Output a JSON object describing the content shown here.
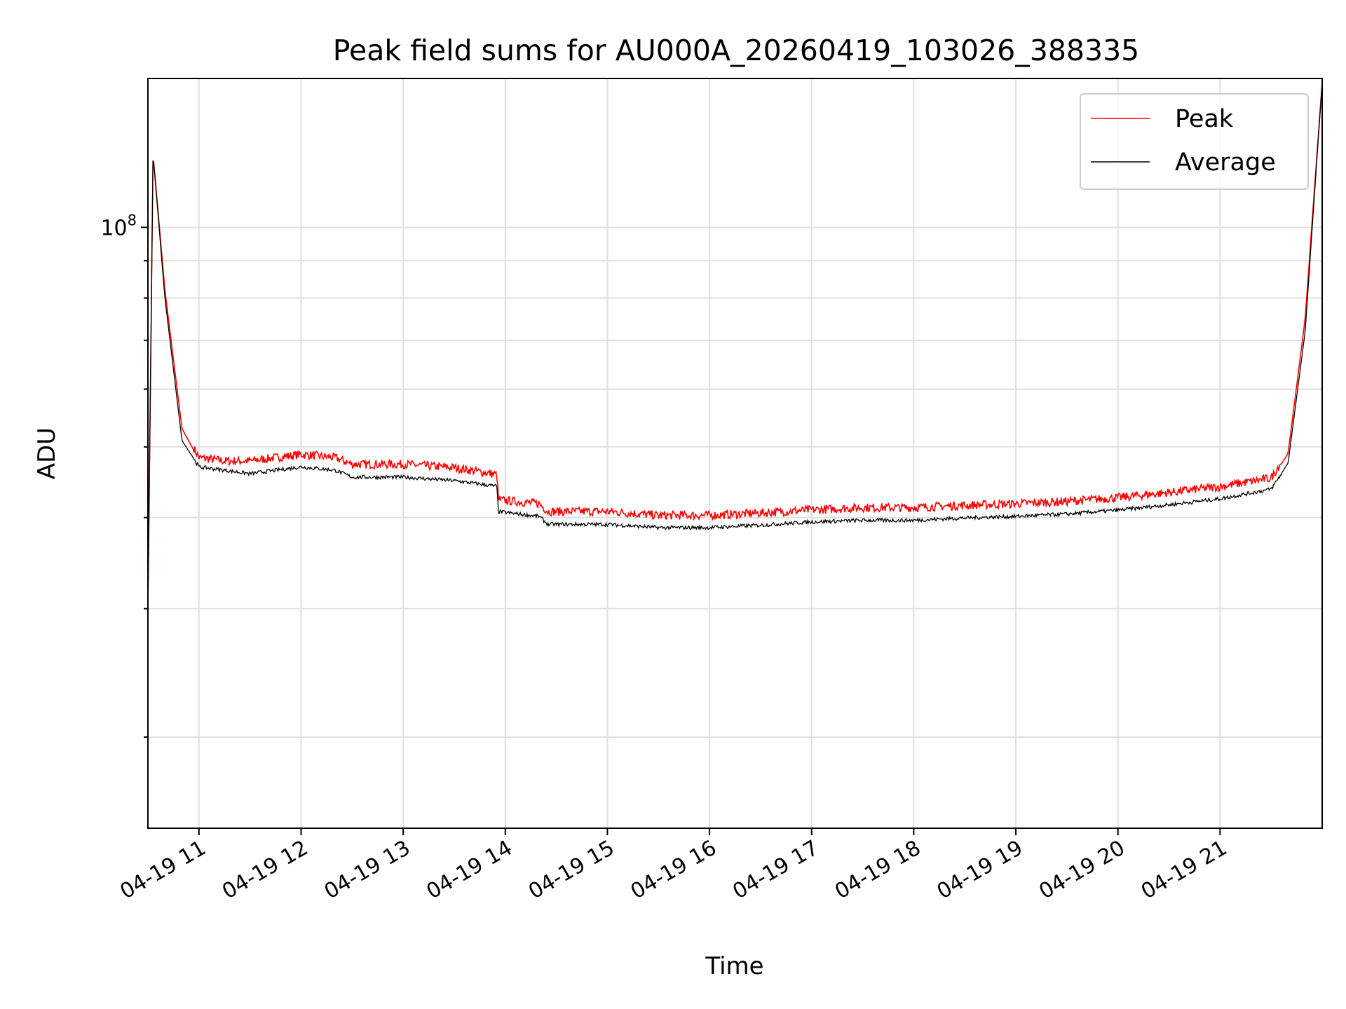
{
  "chart_data": {
    "type": "line",
    "title": "Peak field sums for AU000A_20260419_103026_388335",
    "xlabel": "Time",
    "ylabel": "ADU",
    "y_scale": "log",
    "ylim": [
      15000000,
      160000000
    ],
    "xlim": [
      "04-19 10:30",
      "04-19 22:00"
    ],
    "grid": true,
    "legend_position": "top-right",
    "x_ticks": [
      "04-19 11",
      "04-19 12",
      "04-19 13",
      "04-19 14",
      "04-19 15",
      "04-19 16",
      "04-19 17",
      "04-19 18",
      "04-19 19",
      "04-19 20",
      "04-19 21"
    ],
    "y_tick_label": {
      "base": "10",
      "exponent": "8",
      "value": 100000000
    },
    "y_minor_ticks": [
      20000000,
      30000000,
      40000000,
      50000000,
      60000000,
      70000000,
      80000000,
      90000000
    ],
    "series": [
      {
        "name": "Peak",
        "color": "#ff0000",
        "x": [
          "04-19 10:30",
          "04-19 10:33",
          "04-19 10:40",
          "04-19 10:50",
          "04-19 11:00",
          "04-19 11:15",
          "04-19 11:30",
          "04-19 12:00",
          "04-19 12:20",
          "04-19 12:30",
          "04-19 13:00",
          "04-19 13:30",
          "04-19 13:55",
          "04-19 13:56",
          "04-19 14:20",
          "04-19 14:25",
          "04-19 15:00",
          "04-19 15:30",
          "04-19 16:00",
          "04-19 16:30",
          "04-19 17:00",
          "04-19 17:30",
          "04-19 18:00",
          "04-19 18:30",
          "04-19 19:00",
          "04-19 19:30",
          "04-19 20:00",
          "04-19 20:30",
          "04-19 21:00",
          "04-19 21:30",
          "04-19 21:40",
          "04-19 21:50",
          "04-19 22:00"
        ],
        "y": [
          30000000,
          126000000,
          82000000,
          53000000,
          48000000,
          47500000,
          47500000,
          48500000,
          48000000,
          47000000,
          47000000,
          46500000,
          45500000,
          42000000,
          41500000,
          40500000,
          40500000,
          40000000,
          40000000,
          40300000,
          40700000,
          41000000,
          41000000,
          41300000,
          41500000,
          41800000,
          42300000,
          43000000,
          43800000,
          45000000,
          49000000,
          75000000,
          158000000
        ]
      },
      {
        "name": "Average",
        "color": "#000000",
        "x": [
          "04-19 10:30",
          "04-19 10:33",
          "04-19 10:40",
          "04-19 10:50",
          "04-19 11:00",
          "04-19 11:15",
          "04-19 11:30",
          "04-19 12:00",
          "04-19 12:20",
          "04-19 12:30",
          "04-19 13:00",
          "04-19 13:30",
          "04-19 13:55",
          "04-19 13:56",
          "04-19 14:20",
          "04-19 14:25",
          "04-19 15:00",
          "04-19 15:30",
          "04-19 16:00",
          "04-19 16:30",
          "04-19 17:00",
          "04-19 17:30",
          "04-19 18:00",
          "04-19 18:30",
          "04-19 19:00",
          "04-19 19:30",
          "04-19 20:00",
          "04-19 20:30",
          "04-19 21:00",
          "04-19 21:30",
          "04-19 21:40",
          "04-19 21:50",
          "04-19 22:00"
        ],
        "y": [
          30000000,
          126000000,
          80000000,
          51000000,
          47000000,
          46500000,
          46000000,
          47000000,
          46500000,
          45500000,
          45500000,
          45000000,
          44200000,
          40800000,
          40200000,
          39200000,
          39200000,
          38800000,
          38800000,
          39100000,
          39500000,
          39700000,
          39700000,
          40000000,
          40200000,
          40500000,
          41000000,
          41700000,
          42500000,
          43800000,
          47500000,
          72000000,
          158000000
        ]
      }
    ]
  }
}
